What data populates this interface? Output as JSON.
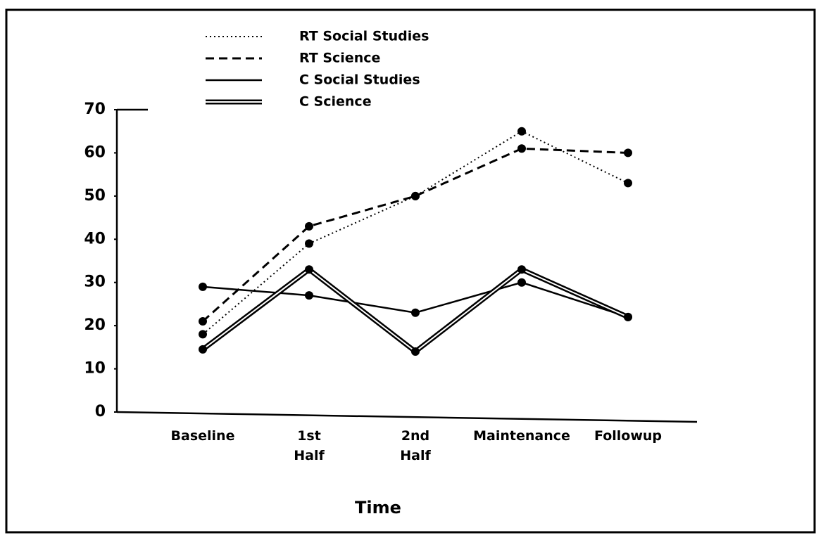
{
  "chart_data": {
    "type": "line",
    "x_label": "Time",
    "categories": [
      "Baseline",
      "1st Half",
      "2nd Half",
      "Maintenance",
      "Followup"
    ],
    "series": [
      {
        "name": "RT Social Studies",
        "color": "#000000",
        "style": "dotted",
        "values": [
          18,
          39,
          50,
          65,
          53
        ]
      },
      {
        "name": "RT Science",
        "color": "#000000",
        "style": "dashed",
        "values": [
          21,
          43,
          50,
          61,
          60
        ]
      },
      {
        "name": "C Social Studies",
        "color": "#000000",
        "style": "solid",
        "values": [
          29,
          27,
          23,
          30,
          22
        ]
      },
      {
        "name": "C Science",
        "color": "#000000",
        "style": "double",
        "values": [
          14.5,
          33,
          14,
          33,
          22
        ]
      }
    ],
    "ylim": [
      0,
      70
    ],
    "yticks": [
      0,
      10,
      20,
      30,
      40,
      50,
      60,
      70
    ],
    "grid": false,
    "legend": "top"
  }
}
